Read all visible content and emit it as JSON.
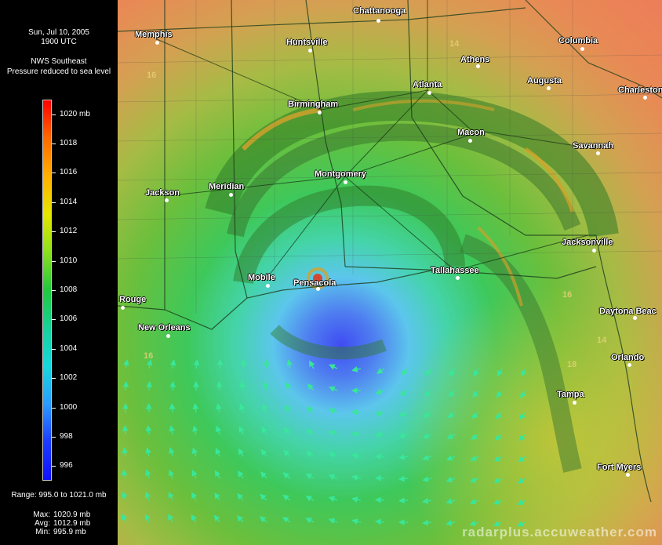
{
  "header": {
    "date": "Sun, Jul 10, 2005",
    "time": "1900 UTC",
    "source": "NWS Southeast",
    "product": "Pressure reduced to sea level"
  },
  "legend": {
    "ticks": [
      {
        "label": "1020 mb",
        "value": 1020
      },
      {
        "label": "1018",
        "value": 1018
      },
      {
        "label": "1016",
        "value": 1016
      },
      {
        "label": "1014",
        "value": 1014
      },
      {
        "label": "1012",
        "value": 1012
      },
      {
        "label": "1010",
        "value": 1010
      },
      {
        "label": "1008",
        "value": 1008
      },
      {
        "label": "1006",
        "value": 1006
      },
      {
        "label": "1004",
        "value": 1004
      },
      {
        "label": "1002",
        "value": 1002
      },
      {
        "label": "1000",
        "value": 1000
      },
      {
        "label": "998",
        "value": 998
      },
      {
        "label": "996",
        "value": 996
      }
    ],
    "scale_min": 995.0,
    "scale_max": 1021.0,
    "range_text": "Range: 995.0 to 1021.0 mb",
    "colors": [
      "#ff0000",
      "#ff6a00",
      "#ffb000",
      "#e6e600",
      "#8ce01e",
      "#22c83c",
      "#17d29a",
      "#17d8dc",
      "#2a9cff",
      "#1c3cff",
      "#1010ff"
    ]
  },
  "stats": {
    "max_label": "Max:",
    "max_value": "1020.9 mb",
    "avg_label": "Avg:",
    "avg_value": "1012.9 mb",
    "min_label": "Min:",
    "min_value": "995.9 mb"
  },
  "cities": [
    {
      "id": "chattanooga",
      "name": "Chattanooga"
    },
    {
      "id": "memphis",
      "name": "Memphis"
    },
    {
      "id": "huntsville",
      "name": "Huntsville"
    },
    {
      "id": "columbia",
      "name": "Columbia"
    },
    {
      "id": "athens",
      "name": "Athens"
    },
    {
      "id": "atlanta",
      "name": "Atlanta"
    },
    {
      "id": "augusta",
      "name": "Augusta"
    },
    {
      "id": "charleston",
      "name": "Charleston"
    },
    {
      "id": "birmingham",
      "name": "Birmingham"
    },
    {
      "id": "macon",
      "name": "Macon"
    },
    {
      "id": "savannah",
      "name": "Savannah"
    },
    {
      "id": "jackson",
      "name": "Jackson"
    },
    {
      "id": "meridian",
      "name": "Meridian"
    },
    {
      "id": "montgomery",
      "name": "Montgomery"
    },
    {
      "id": "jacksonville",
      "name": "Jacksonville"
    },
    {
      "id": "mobile",
      "name": "Mobile"
    },
    {
      "id": "pensacola",
      "name": "Pensacola"
    },
    {
      "id": "tallahassee",
      "name": "Tallahassee"
    },
    {
      "id": "baton-rouge",
      "name": "Rouge"
    },
    {
      "id": "new-orleans",
      "name": "New Orleans"
    },
    {
      "id": "daytona-beach",
      "name": "Daytona Beac"
    },
    {
      "id": "orlando",
      "name": "Orlando"
    },
    {
      "id": "tampa",
      "name": "Tampa"
    },
    {
      "id": "fort-myers",
      "name": "Fort Myers"
    }
  ],
  "isobar_labels": [
    "16",
    "14",
    "18",
    "16",
    "14",
    "16"
  ],
  "watermark": "radarplus.accuweather.com"
}
